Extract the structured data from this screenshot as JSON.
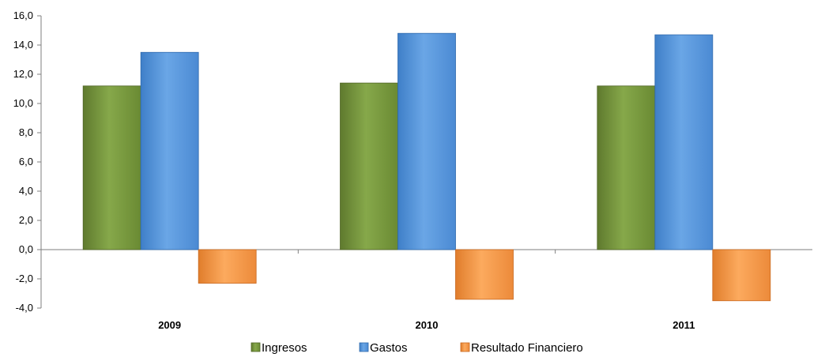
{
  "chart_data": {
    "type": "bar",
    "title": "",
    "categories": [
      "2009",
      "2010",
      "2011"
    ],
    "series": [
      {
        "name": "Ingresos",
        "values": [
          11.2,
          11.4,
          11.2
        ]
      },
      {
        "name": "Gastos",
        "values": [
          13.5,
          14.8,
          14.7
        ]
      },
      {
        "name": "Resultado Financiero",
        "values": [
          -2.3,
          -3.4,
          -3.5
        ]
      }
    ],
    "ylim": [
      -4,
      16
    ],
    "yticks": [
      "-4,0",
      "-2,0",
      "0,0",
      "2,0",
      "4,0",
      "6,0",
      "8,0",
      "10,0",
      "12,0",
      "14,0",
      "16,0"
    ],
    "ytick_values": [
      -4,
      -2,
      0,
      2,
      4,
      6,
      8,
      10,
      12,
      14,
      16
    ],
    "grid": false,
    "legend_position": "bottom",
    "colors": {
      "Ingresos": "#77933c",
      "Gastos": "#5b9bd5",
      "Resultado Financiero": "#f79646"
    }
  }
}
